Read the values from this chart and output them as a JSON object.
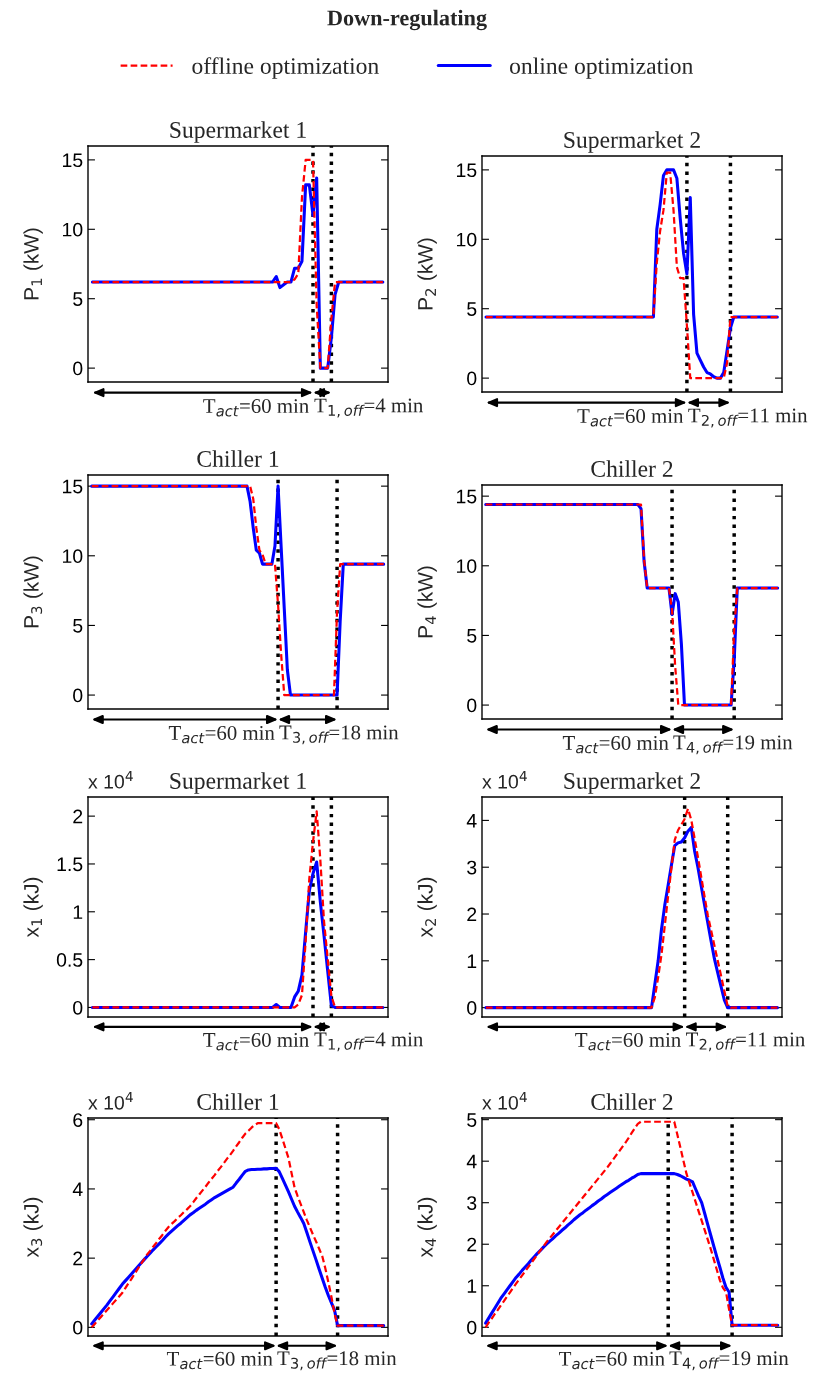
{
  "chart_data": [
    {
      "type": "line",
      "title": "Supermarket 1",
      "ylabel": "P$_{1}$ (kW)",
      "ylim": [
        -1,
        16
      ],
      "yticks": [
        0,
        5,
        10,
        15
      ],
      "tick_labels": "y",
      "legend": "top",
      "annotations": [
        "Down-regulating",
        "T$_{act}$=60 min",
        "T$_{1,off}$=4 min"
      ],
      "categories": [
        null,
        null,
        null,
        null,
        null,
        null,
        null,
        null,
        null,
        null,
        null,
        null,
        null,
        null,
        null,
        null,
        null,
        null,
        null,
        null,
        null,
        null,
        null,
        null,
        null,
        null,
        null,
        null,
        null,
        null,
        null,
        null,
        null,
        null,
        null,
        null,
        null,
        null,
        null,
        null,
        null,
        null,
        null,
        null,
        null,
        null,
        null,
        null,
        null,
        null,
        null,
        null,
        null,
        null,
        null,
        null,
        null,
        null,
        null,
        null,
        null,
        null,
        null,
        null,
        null,
        null,
        null,
        null,
        null,
        null,
        null,
        null,
        null,
        null,
        null,
        null,
        null,
        null,
        null,
        null
      ],
      "series": [
        {
          "name": "offline optimization",
          "color": "#ff0000",
          "line_style": "dashed",
          "values": [
            6.2,
            6.2,
            6.2,
            6.2,
            6.2,
            6.2,
            6.2,
            6.2,
            6.2,
            6.2,
            6.2,
            6.2,
            6.2,
            6.2,
            6.2,
            6.2,
            6.2,
            6.2,
            6.2,
            6.2,
            6.2,
            6.2,
            6.2,
            6.2,
            6.2,
            6.2,
            6.2,
            6.2,
            6.2,
            6.2,
            6.2,
            6.2,
            6.2,
            6.2,
            6.2,
            6.2,
            6.2,
            6.2,
            6.2,
            6.2,
            6.2,
            6.2,
            6.2,
            6.2,
            6.2,
            6.2,
            6.2,
            6.2,
            6.2,
            6.2,
            6.2,
            6.2,
            6.2,
            6.2,
            6.2,
            6.4,
            6.8,
            12.3,
            15,
            15,
            15,
            4.5,
            0,
            0,
            0,
            3.6,
            6.2,
            6.2,
            6.2,
            6.2,
            6.2,
            6.2,
            6.2,
            6.2,
            6.2,
            6.2,
            6.2,
            6.2,
            6.2,
            6.2
          ]
        },
        {
          "name": "online optimization",
          "color": "#0000ff",
          "line_style": "solid",
          "values": [
            6.2,
            6.2,
            6.2,
            6.2,
            6.2,
            6.2,
            6.2,
            6.2,
            6.2,
            6.2,
            6.2,
            6.2,
            6.2,
            6.2,
            6.2,
            6.2,
            6.2,
            6.2,
            6.2,
            6.2,
            6.2,
            6.2,
            6.2,
            6.2,
            6.2,
            6.2,
            6.2,
            6.2,
            6.2,
            6.2,
            6.2,
            6.2,
            6.2,
            6.2,
            6.2,
            6.2,
            6.2,
            6.2,
            6.2,
            6.2,
            6.2,
            6.2,
            6.2,
            6.2,
            6.2,
            6.2,
            6.2,
            6.2,
            6.2,
            6.2,
            6.6,
            5.8,
            6.0,
            6.2,
            6.2,
            7.2,
            7.2,
            7.7,
            13.2,
            13.2,
            11,
            13.7,
            0,
            0,
            0,
            2.2,
            5.3,
            6.2,
            6.2,
            6.2,
            6.2,
            6.2,
            6.2,
            6.2,
            6.2,
            6.2,
            6.2,
            6.2,
            6.2,
            6.2
          ]
        }
      ]
    },
    {
      "type": "line",
      "title": "Supermarket 2",
      "ylabel": "P$_{2}$ (kW)",
      "ylim": [
        -1,
        16
      ],
      "yticks": [
        0,
        5,
        10,
        15
      ],
      "tick_labels": "y",
      "annotations": [
        "T$_{act}$=60 min",
        "T$_{2,off}$=11 min"
      ],
      "categories": [
        null,
        null,
        null,
        null,
        null,
        null,
        null,
        null,
        null,
        null,
        null,
        null,
        null,
        null,
        null,
        null,
        null,
        null,
        null,
        null,
        null,
        null,
        null,
        null,
        null,
        null,
        null,
        null,
        null,
        null,
        null,
        null,
        null,
        null,
        null,
        null,
        null,
        null,
        null,
        null,
        null,
        null,
        null,
        null,
        null,
        null,
        null,
        null,
        null,
        null,
        null,
        null,
        null,
        null,
        null,
        null,
        null,
        null,
        null,
        null,
        null,
        null,
        null,
        null,
        null,
        null,
        null,
        null,
        null,
        null,
        null,
        null,
        null,
        null,
        null,
        null,
        null,
        null,
        null,
        null,
        null,
        null,
        null,
        null,
        null,
        null,
        null,
        null
      ],
      "series": [
        {
          "color": "#ff0000",
          "line_style": "dashed",
          "values": [
            4.4,
            4.4,
            4.4,
            4.4,
            4.4,
            4.4,
            4.4,
            4.4,
            4.4,
            4.4,
            4.4,
            4.4,
            4.4,
            4.4,
            4.4,
            4.4,
            4.4,
            4.4,
            4.4,
            4.4,
            4.4,
            4.4,
            4.4,
            4.4,
            4.4,
            4.4,
            4.4,
            4.4,
            4.4,
            4.4,
            4.4,
            4.4,
            4.4,
            4.4,
            4.4,
            4.4,
            4.4,
            4.4,
            4.4,
            4.4,
            4.4,
            4.4,
            4.4,
            4.4,
            4.4,
            4.4,
            4.4,
            4.4,
            4.4,
            4.4,
            4.4,
            8.3,
            10.6,
            12.1,
            14.8,
            14.8,
            12.1,
            8.0,
            7.2,
            7.2,
            3.8,
            0,
            0,
            0,
            0,
            0,
            0,
            0,
            0,
            0,
            0,
            0,
            1.1,
            4.4,
            4.4,
            4.4,
            4.4,
            4.4,
            4.4,
            4.4,
            4.4,
            4.4,
            4.4,
            4.4,
            4.4,
            4.4,
            4.4,
            4.4
          ]
        },
        {
          "color": "#0000ff",
          "line_style": "solid",
          "values": [
            4.4,
            4.4,
            4.4,
            4.4,
            4.4,
            4.4,
            4.4,
            4.4,
            4.4,
            4.4,
            4.4,
            4.4,
            4.4,
            4.4,
            4.4,
            4.4,
            4.4,
            4.4,
            4.4,
            4.4,
            4.4,
            4.4,
            4.4,
            4.4,
            4.4,
            4.4,
            4.4,
            4.4,
            4.4,
            4.4,
            4.4,
            4.4,
            4.4,
            4.4,
            4.4,
            4.4,
            4.4,
            4.4,
            4.4,
            4.4,
            4.4,
            4.4,
            4.4,
            4.4,
            4.4,
            4.4,
            4.4,
            4.4,
            4.4,
            4.4,
            4.4,
            10.7,
            12.5,
            14.6,
            15,
            15,
            15,
            14.4,
            11.5,
            9,
            7.5,
            13,
            4.6,
            1.8,
            1.3,
            0.8,
            0.4,
            0.3,
            0.1,
            0,
            0,
            0.4,
            2.0,
            3.6,
            4.4,
            4.4,
            4.4,
            4.4,
            4.4,
            4.4,
            4.4,
            4.4,
            4.4,
            4.4,
            4.4,
            4.4,
            4.4,
            4.4
          ]
        }
      ]
    },
    {
      "type": "line",
      "title": "Chiller 1",
      "ylabel": "P$_{3}$ (kW)",
      "ylim": [
        -1,
        15.8
      ],
      "yticks": [
        0,
        5,
        10,
        15
      ],
      "tick_labels": "y",
      "annotations": [
        "T$_{act}$=60 min",
        "T$_{3,off}$=18 min"
      ],
      "categories": [
        null,
        null,
        null,
        null,
        null,
        null,
        null,
        null,
        null,
        null,
        null,
        null,
        null,
        null,
        null,
        null,
        null,
        null,
        null,
        null,
        null,
        null,
        null,
        null,
        null,
        null,
        null,
        null,
        null,
        null,
        null,
        null,
        null,
        null,
        null,
        null,
        null,
        null,
        null,
        null,
        null,
        null,
        null,
        null,
        null,
        null,
        null,
        null,
        null,
        null,
        null,
        null,
        null,
        null,
        null,
        null,
        null,
        null,
        null,
        null,
        null,
        null,
        null,
        null,
        null,
        null,
        null,
        null,
        null,
        null,
        null,
        null,
        null,
        null,
        null,
        null,
        null,
        null,
        null,
        null,
        null,
        null,
        null,
        null,
        null,
        null,
        null,
        null,
        null,
        null,
        null,
        null,
        null,
        null,
        null
      ],
      "series": [
        {
          "color": "#ff0000",
          "line_style": "dashed",
          "values": [
            15,
            15,
            15,
            15,
            15,
            15,
            15,
            15,
            15,
            15,
            15,
            15,
            15,
            15,
            15,
            15,
            15,
            15,
            15,
            15,
            15,
            15,
            15,
            15,
            15,
            15,
            15,
            15,
            15,
            15,
            15,
            15,
            15,
            15,
            15,
            15,
            15,
            15,
            15,
            15,
            15,
            15,
            15,
            15,
            15,
            15,
            15,
            15,
            15,
            15,
            15,
            15,
            14.1,
            12.0,
            10.4,
            10.1,
            9.4,
            9.4,
            9.4,
            9.4,
            6.5,
            2.9,
            0,
            0,
            0,
            0,
            0,
            0,
            0,
            0,
            0,
            0,
            0,
            0,
            0,
            0,
            0,
            0,
            0,
            6.0,
            9.4,
            9.4,
            9.4,
            9.4,
            9.4,
            9.4,
            9.4,
            9.4,
            9.4,
            9.4,
            9.4,
            9.4,
            9.4,
            9.4,
            9.4
          ]
        },
        {
          "color": "#0000ff",
          "line_style": "solid",
          "values": [
            15,
            15,
            15,
            15,
            15,
            15,
            15,
            15,
            15,
            15,
            15,
            15,
            15,
            15,
            15,
            15,
            15,
            15,
            15,
            15,
            15,
            15,
            15,
            15,
            15,
            15,
            15,
            15,
            15,
            15,
            15,
            15,
            15,
            15,
            15,
            15,
            15,
            15,
            15,
            15,
            15,
            15,
            15,
            15,
            15,
            15,
            15,
            15,
            15,
            15,
            15,
            13.9,
            12.0,
            10.4,
            10.2,
            9.4,
            9.4,
            9.4,
            9.4,
            10.7,
            15,
            10.6,
            6.2,
            1.8,
            0,
            0,
            0,
            0,
            0,
            0,
            0,
            0,
            0,
            0,
            0,
            0,
            0,
            0,
            0,
            0,
            5.3,
            9.4,
            9.4,
            9.4,
            9.4,
            9.4,
            9.4,
            9.4,
            9.4,
            9.4,
            9.4,
            9.4,
            9.4,
            9.4,
            9.4
          ]
        }
      ]
    },
    {
      "type": "line",
      "title": "Chiller 2",
      "ylabel": "P$_{4}$ (kW)",
      "ylim": [
        -1,
        15.8
      ],
      "yticks": [
        0,
        5,
        10,
        15
      ],
      "tick_labels": "y",
      "annotations": [
        "T$_{act}$=60 min",
        "T$_{4,off}$=19 min"
      ],
      "categories": [
        null,
        null,
        null,
        null,
        null,
        null,
        null,
        null,
        null,
        null,
        null,
        null,
        null,
        null,
        null,
        null,
        null,
        null,
        null,
        null,
        null,
        null,
        null,
        null,
        null,
        null,
        null,
        null,
        null,
        null,
        null,
        null,
        null,
        null,
        null,
        null,
        null,
        null,
        null,
        null,
        null,
        null,
        null,
        null,
        null,
        null,
        null,
        null,
        null,
        null,
        null,
        null,
        null,
        null,
        null,
        null,
        null,
        null,
        null,
        null,
        null,
        null,
        null,
        null,
        null,
        null,
        null,
        null,
        null,
        null,
        null,
        null,
        null,
        null,
        null,
        null,
        null,
        null,
        null,
        null,
        null,
        null,
        null,
        null,
        null,
        null,
        null,
        null,
        null,
        null,
        null,
        null,
        null,
        null,
        null
      ],
      "series": [
        {
          "color": "#ff0000",
          "line_style": "dashed",
          "values": [
            14.4,
            14.4,
            14.4,
            14.4,
            14.4,
            14.4,
            14.4,
            14.4,
            14.4,
            14.4,
            14.4,
            14.4,
            14.4,
            14.4,
            14.4,
            14.4,
            14.4,
            14.4,
            14.4,
            14.4,
            14.4,
            14.4,
            14.4,
            14.4,
            14.4,
            14.4,
            14.4,
            14.4,
            14.4,
            14.4,
            14.4,
            14.4,
            14.4,
            14.4,
            14.4,
            14.4,
            14.4,
            14.4,
            14.4,
            14.4,
            14.4,
            14.4,
            14.4,
            14.4,
            14.4,
            14.4,
            14.4,
            14.4,
            14.4,
            14.4,
            14.4,
            10.4,
            8.4,
            8.4,
            8.4,
            8.4,
            8.4,
            8.4,
            8.4,
            8.4,
            6.8,
            2.8,
            0,
            0,
            0,
            0,
            0,
            0,
            0,
            0,
            0,
            0,
            0,
            0,
            0,
            0,
            0,
            0,
            0,
            0,
            5.4,
            8.4,
            8.4,
            8.4,
            8.4,
            8.4,
            8.4,
            8.4,
            8.4,
            8.4,
            8.4,
            8.4,
            8.4,
            8.4,
            8.4
          ]
        },
        {
          "color": "#0000ff",
          "line_style": "solid",
          "values": [
            14.4,
            14.4,
            14.4,
            14.4,
            14.4,
            14.4,
            14.4,
            14.4,
            14.4,
            14.4,
            14.4,
            14.4,
            14.4,
            14.4,
            14.4,
            14.4,
            14.4,
            14.4,
            14.4,
            14.4,
            14.4,
            14.4,
            14.4,
            14.4,
            14.4,
            14.4,
            14.4,
            14.4,
            14.4,
            14.4,
            14.4,
            14.4,
            14.4,
            14.4,
            14.4,
            14.4,
            14.4,
            14.4,
            14.4,
            14.4,
            14.4,
            14.4,
            14.4,
            14.4,
            14.4,
            14.4,
            14.4,
            14.4,
            14.4,
            14.4,
            14.1,
            10.3,
            8.4,
            8.4,
            8.4,
            8.4,
            8.4,
            8.4,
            8.4,
            8.4,
            6.5,
            8.0,
            7.4,
            4.4,
            0,
            0,
            0,
            0,
            0,
            0,
            0,
            0,
            0,
            0,
            0,
            0,
            0,
            0,
            0,
            0,
            3.2,
            8.4,
            8.4,
            8.4,
            8.4,
            8.4,
            8.4,
            8.4,
            8.4,
            8.4,
            8.4,
            8.4,
            8.4,
            8.4,
            8.4
          ]
        }
      ]
    },
    {
      "type": "line",
      "title": "Supermarket 1",
      "ylabel": "x$_{1}$ (kJ)",
      "ylim": [
        -0.1,
        2.2
      ],
      "yticks": [
        0,
        0.5,
        1,
        1.5,
        2
      ],
      "tick_labels": "y",
      "annotations": [
        "x 10$^{4}$",
        "T$_{act}$=60 min",
        "T$_{1,off}$=4 min"
      ],
      "categories": [
        null,
        null,
        null,
        null,
        null,
        null,
        null,
        null,
        null,
        null,
        null,
        null,
        null,
        null,
        null,
        null,
        null,
        null,
        null,
        null,
        null,
        null,
        null,
        null,
        null,
        null,
        null,
        null,
        null,
        null,
        null,
        null,
        null,
        null,
        null,
        null,
        null,
        null,
        null,
        null,
        null,
        null,
        null,
        null,
        null,
        null,
        null,
        null,
        null,
        null,
        null,
        null,
        null,
        null,
        null,
        null,
        null,
        null,
        null,
        null,
        null,
        null,
        null,
        null,
        null,
        null,
        null,
        null,
        null,
        null,
        null,
        null,
        null,
        null,
        null,
        null,
        null,
        null,
        null,
        null
      ],
      "series": [
        {
          "color": "#ff0000",
          "line_style": "dashed",
          "values": [
            0,
            0,
            0,
            0,
            0,
            0,
            0,
            0,
            0,
            0,
            0,
            0,
            0,
            0,
            0,
            0,
            0,
            0,
            0,
            0,
            0,
            0,
            0,
            0,
            0,
            0,
            0,
            0,
            0,
            0,
            0,
            0,
            0,
            0,
            0,
            0,
            0,
            0,
            0,
            0,
            0,
            0,
            0,
            0,
            0,
            0,
            0,
            0,
            0,
            0,
            0,
            0,
            0,
            0,
            0,
            0,
            0.03,
            0.13,
            0.69,
            1.35,
            1.73,
            2.05,
            1.54,
            0.9,
            0.51,
            0.12,
            0,
            0,
            0,
            0,
            0,
            0,
            0,
            0,
            0,
            0,
            0,
            0,
            0,
            0
          ]
        },
        {
          "color": "#0000ff",
          "line_style": "solid",
          "values": [
            0,
            0,
            0,
            0,
            0,
            0,
            0,
            0,
            0,
            0,
            0,
            0,
            0,
            0,
            0,
            0,
            0,
            0,
            0,
            0,
            0,
            0,
            0,
            0,
            0,
            0,
            0,
            0,
            0,
            0,
            0,
            0,
            0,
            0,
            0,
            0,
            0,
            0,
            0,
            0,
            0,
            0,
            0,
            0,
            0,
            0,
            0,
            0,
            0,
            0,
            0.03,
            0,
            0,
            0,
            0,
            0.11,
            0.17,
            0.34,
            0.79,
            1.22,
            1.4,
            1.52,
            1.1,
            0.75,
            0.38,
            0.02,
            0,
            0,
            0,
            0,
            0,
            0,
            0,
            0,
            0,
            0,
            0,
            0,
            0,
            0
          ]
        }
      ]
    },
    {
      "type": "line",
      "title": "Supermarket 2",
      "ylabel": "x$_{2}$ (kJ)",
      "ylim": [
        -0.2,
        4.5
      ],
      "yticks": [
        0,
        1,
        2,
        3,
        4
      ],
      "tick_labels": "y",
      "annotations": [
        "x 10$^{4}$",
        "T$_{act}$=60 min",
        "T$_{2,off}$=11 min"
      ],
      "categories": [
        null,
        null,
        null,
        null,
        null,
        null,
        null,
        null,
        null,
        null,
        null,
        null,
        null,
        null,
        null,
        null,
        null,
        null,
        null,
        null,
        null,
        null,
        null,
        null,
        null,
        null,
        null,
        null,
        null,
        null,
        null,
        null,
        null,
        null,
        null,
        null,
        null,
        null,
        null,
        null,
        null,
        null,
        null,
        null,
        null,
        null,
        null,
        null,
        null,
        null,
        null,
        null,
        null,
        null,
        null,
        null,
        null,
        null,
        null,
        null,
        null,
        null,
        null,
        null,
        null,
        null,
        null,
        null,
        null,
        null,
        null,
        null,
        null,
        null,
        null,
        null,
        null,
        null,
        null,
        null,
        null,
        null,
        null,
        null,
        null,
        null,
        null,
        null,
        null
      ],
      "series": [
        {
          "color": "#ff0000",
          "line_style": "dashed",
          "values": [
            0,
            0,
            0,
            0,
            0,
            0,
            0,
            0,
            0,
            0,
            0,
            0,
            0,
            0,
            0,
            0,
            0,
            0,
            0,
            0,
            0,
            0,
            0,
            0,
            0,
            0,
            0,
            0,
            0,
            0,
            0,
            0,
            0,
            0,
            0,
            0,
            0,
            0,
            0,
            0,
            0,
            0,
            0,
            0,
            0,
            0,
            0,
            0,
            0,
            0,
            0,
            0.22,
            0.65,
            1.13,
            1.75,
            2.38,
            2.98,
            3.58,
            3.79,
            3.91,
            4.03,
            4.25,
            4.01,
            3.62,
            3.22,
            2.8,
            2.38,
            1.97,
            1.65,
            1.32,
            1.0,
            0.68,
            0.35,
            0.03,
            0,
            0,
            0,
            0,
            0,
            0,
            0,
            0,
            0,
            0,
            0,
            0,
            0,
            0,
            0
          ]
        },
        {
          "color": "#0000ff",
          "line_style": "solid",
          "values": [
            0,
            0,
            0,
            0,
            0,
            0,
            0,
            0,
            0,
            0,
            0,
            0,
            0,
            0,
            0,
            0,
            0,
            0,
            0,
            0,
            0,
            0,
            0,
            0,
            0,
            0,
            0,
            0,
            0,
            0,
            0,
            0,
            0,
            0,
            0,
            0,
            0,
            0,
            0,
            0,
            0,
            0,
            0,
            0,
            0,
            0,
            0,
            0,
            0,
            0,
            0,
            0.5,
            1.0,
            1.67,
            2.19,
            2.61,
            3.04,
            3.46,
            3.52,
            3.54,
            3.63,
            3.77,
            3.85,
            3.35,
            3.0,
            2.6,
            2.2,
            1.81,
            1.42,
            1.04,
            0.74,
            0.45,
            0.16,
            0,
            0,
            0,
            0,
            0,
            0,
            0,
            0,
            0,
            0,
            0,
            0,
            0,
            0,
            0,
            0
          ]
        }
      ]
    },
    {
      "type": "line",
      "title": "Chiller 1",
      "ylabel": "x$_{3}$ (kJ)",
      "ylim": [
        -0.25,
        6.05
      ],
      "yticks": [
        0,
        2,
        4,
        6
      ],
      "tick_labels": "y",
      "annotations": [
        "x 10$^{4}$",
        "T$_{act}$=60 min",
        "T$_{3,off}$=18 min"
      ],
      "categories": [
        null,
        null,
        null,
        null,
        null,
        null,
        null,
        null,
        null,
        null,
        null,
        null,
        null,
        null,
        null,
        null,
        null,
        null,
        null,
        null,
        null,
        null,
        null,
        null,
        null,
        null,
        null,
        null,
        null,
        null,
        null,
        null,
        null,
        null,
        null,
        null,
        null,
        null,
        null,
        null,
        null,
        null,
        null,
        null,
        null,
        null,
        null,
        null,
        null,
        null,
        null,
        null,
        null,
        null,
        null,
        null,
        null,
        null,
        null,
        null,
        null,
        null,
        null,
        null,
        null,
        null,
        null,
        null,
        null,
        null,
        null,
        null,
        null,
        null,
        null,
        null,
        null,
        null,
        null,
        null,
        null,
        null,
        null,
        null,
        null,
        null,
        null,
        null,
        null,
        null,
        null,
        null,
        null,
        null,
        null,
        null
      ],
      "series": [
        {
          "color": "#ff0000",
          "line_style": "dashed",
          "values": [
            0,
            0.1,
            0.2,
            0.3,
            0.4,
            0.5,
            0.6,
            0.7,
            0.8,
            0.9,
            1.0,
            1.14,
            1.28,
            1.41,
            1.55,
            1.69,
            1.83,
            1.96,
            2.1,
            2.21,
            2.33,
            2.44,
            2.56,
            2.67,
            2.79,
            2.9,
            2.99,
            3.07,
            3.16,
            3.24,
            3.33,
            3.41,
            3.5,
            3.61,
            3.73,
            3.84,
            3.95,
            4.06,
            4.18,
            4.29,
            4.4,
            4.52,
            4.63,
            4.75,
            4.87,
            4.98,
            5.1,
            5.23,
            5.35,
            5.48,
            5.6,
            5.68,
            5.77,
            5.85,
            5.9,
            5.9,
            5.9,
            5.9,
            5.9,
            5.9,
            5.9,
            5.73,
            5.46,
            5.18,
            4.9,
            4.47,
            4.04,
            3.79,
            3.56,
            3.33,
            3.1,
            2.89,
            2.68,
            2.48,
            2.27,
            2.06,
            1.71,
            1.3,
            0.88,
            0.4,
            0.05,
            0.05,
            0.05,
            0.05,
            0.05,
            0.05,
            0.05,
            0.05,
            0.05,
            0.05,
            0.05,
            0.05,
            0.05,
            0.05,
            0.05,
            0.05
          ]
        },
        {
          "color": "#0000ff",
          "line_style": "solid",
          "values": [
            0.1,
            0.21,
            0.32,
            0.43,
            0.54,
            0.65,
            0.77,
            0.89,
            1.01,
            1.13,
            1.25,
            1.35,
            1.45,
            1.55,
            1.65,
            1.75,
            1.85,
            1.95,
            2.05,
            2.14,
            2.24,
            2.33,
            2.42,
            2.51,
            2.61,
            2.7,
            2.78,
            2.86,
            2.94,
            3.01,
            3.09,
            3.17,
            3.25,
            3.31,
            3.38,
            3.44,
            3.5,
            3.56,
            3.63,
            3.69,
            3.75,
            3.8,
            3.85,
            3.9,
            3.95,
            4.0,
            4.05,
            4.17,
            4.28,
            4.4,
            4.51,
            4.55,
            4.56,
            4.56,
            4.57,
            4.57,
            4.58,
            4.58,
            4.59,
            4.59,
            4.6,
            4.5,
            4.31,
            4.12,
            3.92,
            3.71,
            3.5,
            3.33,
            3.17,
            3.0,
            2.74,
            2.47,
            2.21,
            1.95,
            1.68,
            1.42,
            1.16,
            0.92,
            0.71,
            0.5,
            0.05,
            0.05,
            0.05,
            0.05,
            0.05,
            0.05,
            0.05,
            0.05,
            0.05,
            0.05,
            0.05,
            0.05,
            0.05,
            0.05,
            0.05,
            0.05
          ]
        }
      ]
    },
    {
      "type": "line",
      "title": "Chiller 2",
      "ylabel": "x$_{4}$ (kJ)",
      "ylim": [
        -0.21,
        5.04
      ],
      "yticks": [
        0,
        1,
        2,
        3,
        4,
        5
      ],
      "tick_labels": "y",
      "annotations": [
        "x 10$^{4}$",
        "T$_{act}$=60 min",
        "T$_{4,off}$=19 min"
      ],
      "categories": [
        null,
        null,
        null,
        null,
        null,
        null,
        null,
        null,
        null,
        null,
        null,
        null,
        null,
        null,
        null,
        null,
        null,
        null,
        null,
        null,
        null,
        null,
        null,
        null,
        null,
        null,
        null,
        null,
        null,
        null,
        null,
        null,
        null,
        null,
        null,
        null,
        null,
        null,
        null,
        null,
        null,
        null,
        null,
        null,
        null,
        null,
        null,
        null,
        null,
        null,
        null,
        null,
        null,
        null,
        null,
        null,
        null,
        null,
        null,
        null,
        null,
        null,
        null,
        null,
        null,
        null,
        null,
        null,
        null,
        null,
        null,
        null,
        null,
        null,
        null,
        null,
        null,
        null,
        null,
        null,
        null,
        null,
        null,
        null,
        null,
        null,
        null,
        null,
        null,
        null,
        null,
        null,
        null,
        null,
        null,
        null,
        null
      ],
      "series": [
        {
          "color": "#ff0000",
          "line_style": "dashed",
          "values": [
            0,
            0.11,
            0.21,
            0.32,
            0.42,
            0.53,
            0.63,
            0.74,
            0.84,
            0.95,
            1.05,
            1.15,
            1.25,
            1.35,
            1.45,
            1.55,
            1.65,
            1.75,
            1.85,
            1.95,
            2.05,
            2.14,
            2.23,
            2.32,
            2.41,
            2.5,
            2.59,
            2.68,
            2.77,
            2.86,
            2.95,
            3.04,
            3.13,
            3.22,
            3.31,
            3.4,
            3.49,
            3.58,
            3.67,
            3.76,
            3.85,
            3.95,
            4.05,
            4.15,
            4.25,
            4.35,
            4.45,
            4.56,
            4.68,
            4.79,
            4.9,
            4.95,
            4.95,
            4.95,
            4.95,
            4.95,
            4.95,
            4.95,
            4.95,
            4.95,
            4.95,
            4.95,
            4.95,
            4.64,
            4.33,
            4.01,
            3.7,
            3.47,
            3.25,
            3.02,
            2.79,
            2.57,
            2.34,
            2.11,
            1.88,
            1.63,
            1.38,
            1.13,
            0.95,
            0.85,
            0.43,
            0.05,
            0.05,
            0.05,
            0.05,
            0.05,
            0.05,
            0.05,
            0.05,
            0.05,
            0.05,
            0.05,
            0.05,
            0.05,
            0.05,
            0.05,
            0.05
          ]
        },
        {
          "color": "#0000ff",
          "line_style": "solid",
          "values": [
            0.1,
            0.22,
            0.34,
            0.46,
            0.58,
            0.7,
            0.8,
            0.9,
            1.0,
            1.1,
            1.2,
            1.28,
            1.37,
            1.45,
            1.53,
            1.62,
            1.7,
            1.78,
            1.85,
            1.93,
            2.0,
            2.07,
            2.13,
            2.2,
            2.26,
            2.33,
            2.39,
            2.46,
            2.52,
            2.59,
            2.65,
            2.71,
            2.76,
            2.82,
            2.87,
            2.93,
            2.98,
            3.04,
            3.09,
            3.15,
            3.2,
            3.25,
            3.3,
            3.35,
            3.4,
            3.45,
            3.5,
            3.54,
            3.59,
            3.63,
            3.68,
            3.7,
            3.7,
            3.7,
            3.7,
            3.7,
            3.7,
            3.7,
            3.7,
            3.7,
            3.7,
            3.7,
            3.7,
            3.68,
            3.65,
            3.61,
            3.57,
            3.54,
            3.5,
            3.33,
            3.16,
            3.0,
            2.74,
            2.47,
            2.21,
            1.95,
            1.69,
            1.44,
            1.18,
            0.96,
            0.85,
            0.05,
            0.05,
            0.05,
            0.05,
            0.05,
            0.05,
            0.05,
            0.05,
            0.05,
            0.05,
            0.05,
            0.05,
            0.05,
            0.05,
            0.05,
            0.05
          ]
        }
      ]
    }
  ]
}
